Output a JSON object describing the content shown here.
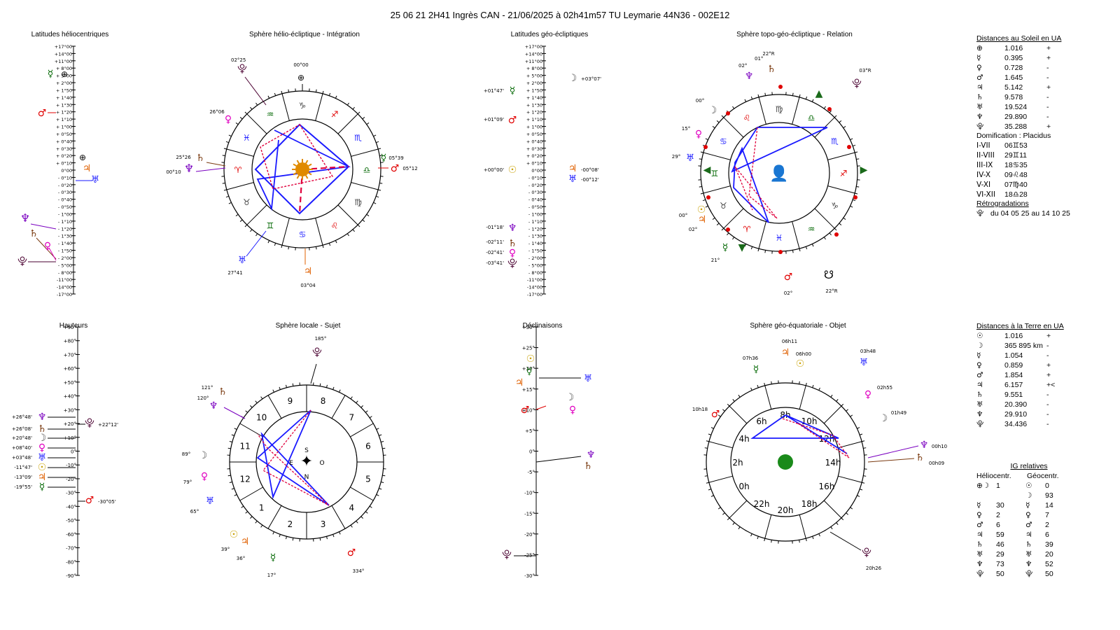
{
  "title": "25 06 21 2H41 Ingrès CAN   -  21/06/2025 à 02h41m57 TU  Leymarie  44N36 - 002E12",
  "panels": {
    "p1": "Latitudes héliocentriques",
    "p2": "Sphère hélio-écliptique - Intégration",
    "p3": "Latitudes géo-écliptiques",
    "p4": "Sphère topo-géo-écliptique - Relation",
    "p5": "Hauteurs",
    "p6": "Sphère locale - Sujet",
    "p7": "Déclinaisons",
    "p8": "Sphère géo-équatoriale - Objet"
  },
  "colors": {
    "blue": "#1a1aff",
    "red": "#e0003c",
    "sun": "#e08a00",
    "mars": "#e00000",
    "jupiter": "#e06000",
    "venus": "#e000c0",
    "mercury": "#006600",
    "saturn": "#7a3a10",
    "uranus": "#1a1aff",
    "neptune": "#7a00c0",
    "pluto": "#4a0030"
  },
  "lat_scale": [
    "+17°00",
    "+14°00",
    "+11°00",
    "+ 8°00",
    "+ 5°00",
    "+ 2°00",
    "+ 1°50",
    "+ 1°40",
    "+ 1°30",
    "+ 1°20",
    "+ 1°10",
    "+ 1°00",
    "+ 0°50",
    "+ 0°40",
    "+ 0°30",
    "+ 0°20",
    "+ 0°10",
    "0°00",
    "- 0°10",
    "- 0°20",
    "- 0°30",
    "- 0°40",
    "- 0°50",
    "- 1°00",
    "- 1°10",
    "- 1°20",
    "- 1°30",
    "- 1°40",
    "- 1°50",
    "- 2°00",
    "- 5°00",
    "- 8°00",
    "-11°00",
    "-14°00",
    "-17°00"
  ],
  "geo_lat_labels": [
    "+03°07'",
    "+01°47'",
    "+01°09'",
    "+00°00'",
    "-00°08'",
    "-00°12'",
    "-01°18'",
    "-02°11'",
    "-02°41'",
    "-03°41'"
  ],
  "height_scale": [
    "+90°",
    "+80°",
    "+70°",
    "+60°",
    "+50°",
    "+40°",
    "+30°",
    "+20°",
    "+10°",
    "0°",
    "-10°",
    "-20°",
    "-30°",
    "-40°",
    "-50°",
    "-60°",
    "-70°",
    "-80°",
    "-90°"
  ],
  "height_labels": [
    "+26°48'",
    "+26°08'",
    "+20°48'",
    "+08°40'",
    "+03°48'",
    "-11°47'",
    "-13°09'",
    "-19°55'",
    "+22°12'",
    "-30°05'"
  ],
  "decl_scale": [
    "+30°",
    "+25°",
    "+20°",
    "+15°",
    "+10°",
    "+5°",
    "0°",
    "-5°",
    "-10°",
    "-15°",
    "-20°",
    "-25°",
    "-30°"
  ],
  "helio_labels": [
    "02°25",
    "00°00",
    "26°06",
    "25°26",
    "00°10",
    "05°39",
    "05°12",
    "27°41",
    "03°04"
  ],
  "topo_labels": [
    "01°",
    "22°R",
    "02°",
    "03°R",
    "00°",
    "15°",
    "29°",
    "00°",
    "02°",
    "21°",
    "02°",
    "22°R"
  ],
  "local_labels": [
    "185°",
    "121°",
    "120°",
    "89°",
    "79°",
    "65°",
    "39°",
    "36°",
    "17°",
    "334°"
  ],
  "local_houses": [
    "9",
    "10",
    "11",
    "12",
    "1",
    "2",
    "3",
    "4",
    "5",
    "6",
    "7",
    "8"
  ],
  "compass": {
    "s": "S",
    "e": "E",
    "o": "O",
    "n": "N"
  },
  "equat_hours": [
    "6h",
    "4h",
    "2h",
    "0h",
    "22h",
    "20h",
    "18h",
    "16h",
    "14h",
    "12h",
    "10h",
    "8h"
  ],
  "equat_labels": [
    "06h11",
    "07h36",
    "06h00",
    "03h48",
    "02h55",
    "01h49",
    "00h10",
    "00h09",
    "10h18",
    "20h26"
  ],
  "sun_distances": {
    "header": "Distances au Soleil en UA",
    "rows": [
      {
        "g": "⊕",
        "v": "1.016",
        "s": "+"
      },
      {
        "g": "☿",
        "v": "0.395",
        "s": "+"
      },
      {
        "g": "♀",
        "v": "0.728",
        "s": "-"
      },
      {
        "g": "♂",
        "v": "1.645",
        "s": "-"
      },
      {
        "g": "♃",
        "v": "5.142",
        "s": "+"
      },
      {
        "g": "♄",
        "v": "9.578",
        "s": "-"
      },
      {
        "g": "♅",
        "v": "19.524",
        "s": "-"
      },
      {
        "g": "♆",
        "v": "29.890",
        "s": "-"
      },
      {
        "g": "⯓",
        "v": "35.288",
        "s": "+"
      }
    ]
  },
  "domification": {
    "header": "Domification : Placidus",
    "rows": [
      {
        "a": "I-VII",
        "b": "06♊53"
      },
      {
        "a": "II-VIII",
        "b": "29♊11"
      },
      {
        "a": "III-IX",
        "b": "18♋35"
      },
      {
        "a": "IV-X",
        "b": "09♌48"
      },
      {
        "a": "V-XI",
        "b": "07♍40"
      },
      {
        "a": "VI-XII",
        "b": "18♎28"
      }
    ]
  },
  "retro": {
    "header": "Rétrogradations",
    "text": "du 04 05 25 au 14 10 25",
    "glyph": "⯓"
  },
  "earth_distances": {
    "header": "Distances à la Terre en UA",
    "rows": [
      {
        "g": "☉",
        "v": "1.016",
        "s": "+"
      },
      {
        "g": "☽",
        "v": "365 895 km",
        "s": "-"
      },
      {
        "g": "☿",
        "v": "1.054",
        "s": "-"
      },
      {
        "g": "♀",
        "v": "0.859",
        "s": "+"
      },
      {
        "g": "♂",
        "v": "1.854",
        "s": "+"
      },
      {
        "g": "♃",
        "v": "6.157",
        "s": "+<"
      },
      {
        "g": "♄",
        "v": "9.551",
        "s": "-"
      },
      {
        "g": "♅",
        "v": "20.390",
        "s": "-"
      },
      {
        "g": "♆",
        "v": "29.910",
        "s": "-"
      },
      {
        "g": "⯓",
        "v": "34.436",
        "s": "-"
      }
    ]
  },
  "ig": {
    "header": "IG relatives",
    "col1": "Héliocentr.",
    "col2": "Géocentr.",
    "rows": [
      {
        "g1": "⊕☽",
        "v1": "1",
        "g2": "☉",
        "v2": "0"
      },
      {
        "g1": "",
        "v1": "",
        "g2": "☽",
        "v2": "93"
      },
      {
        "g1": "☿",
        "v1": "30",
        "g2": "☿",
        "v2": "14"
      },
      {
        "g1": "♀",
        "v1": "2",
        "g2": "♀",
        "v2": "7"
      },
      {
        "g1": "♂",
        "v1": "6",
        "g2": "♂",
        "v2": "2"
      },
      {
        "g1": "♃",
        "v1": "59",
        "g2": "♃",
        "v2": "6"
      },
      {
        "g1": "♄",
        "v1": "46",
        "g2": "♄",
        "v2": "39"
      },
      {
        "g1": "♅",
        "v1": "29",
        "g2": "♅",
        "v2": "20"
      },
      {
        "g1": "♆",
        "v1": "73",
        "g2": "♆",
        "v2": "52"
      },
      {
        "g1": "⯓",
        "v1": "50",
        "g2": "⯓",
        "v2": "50"
      }
    ]
  }
}
